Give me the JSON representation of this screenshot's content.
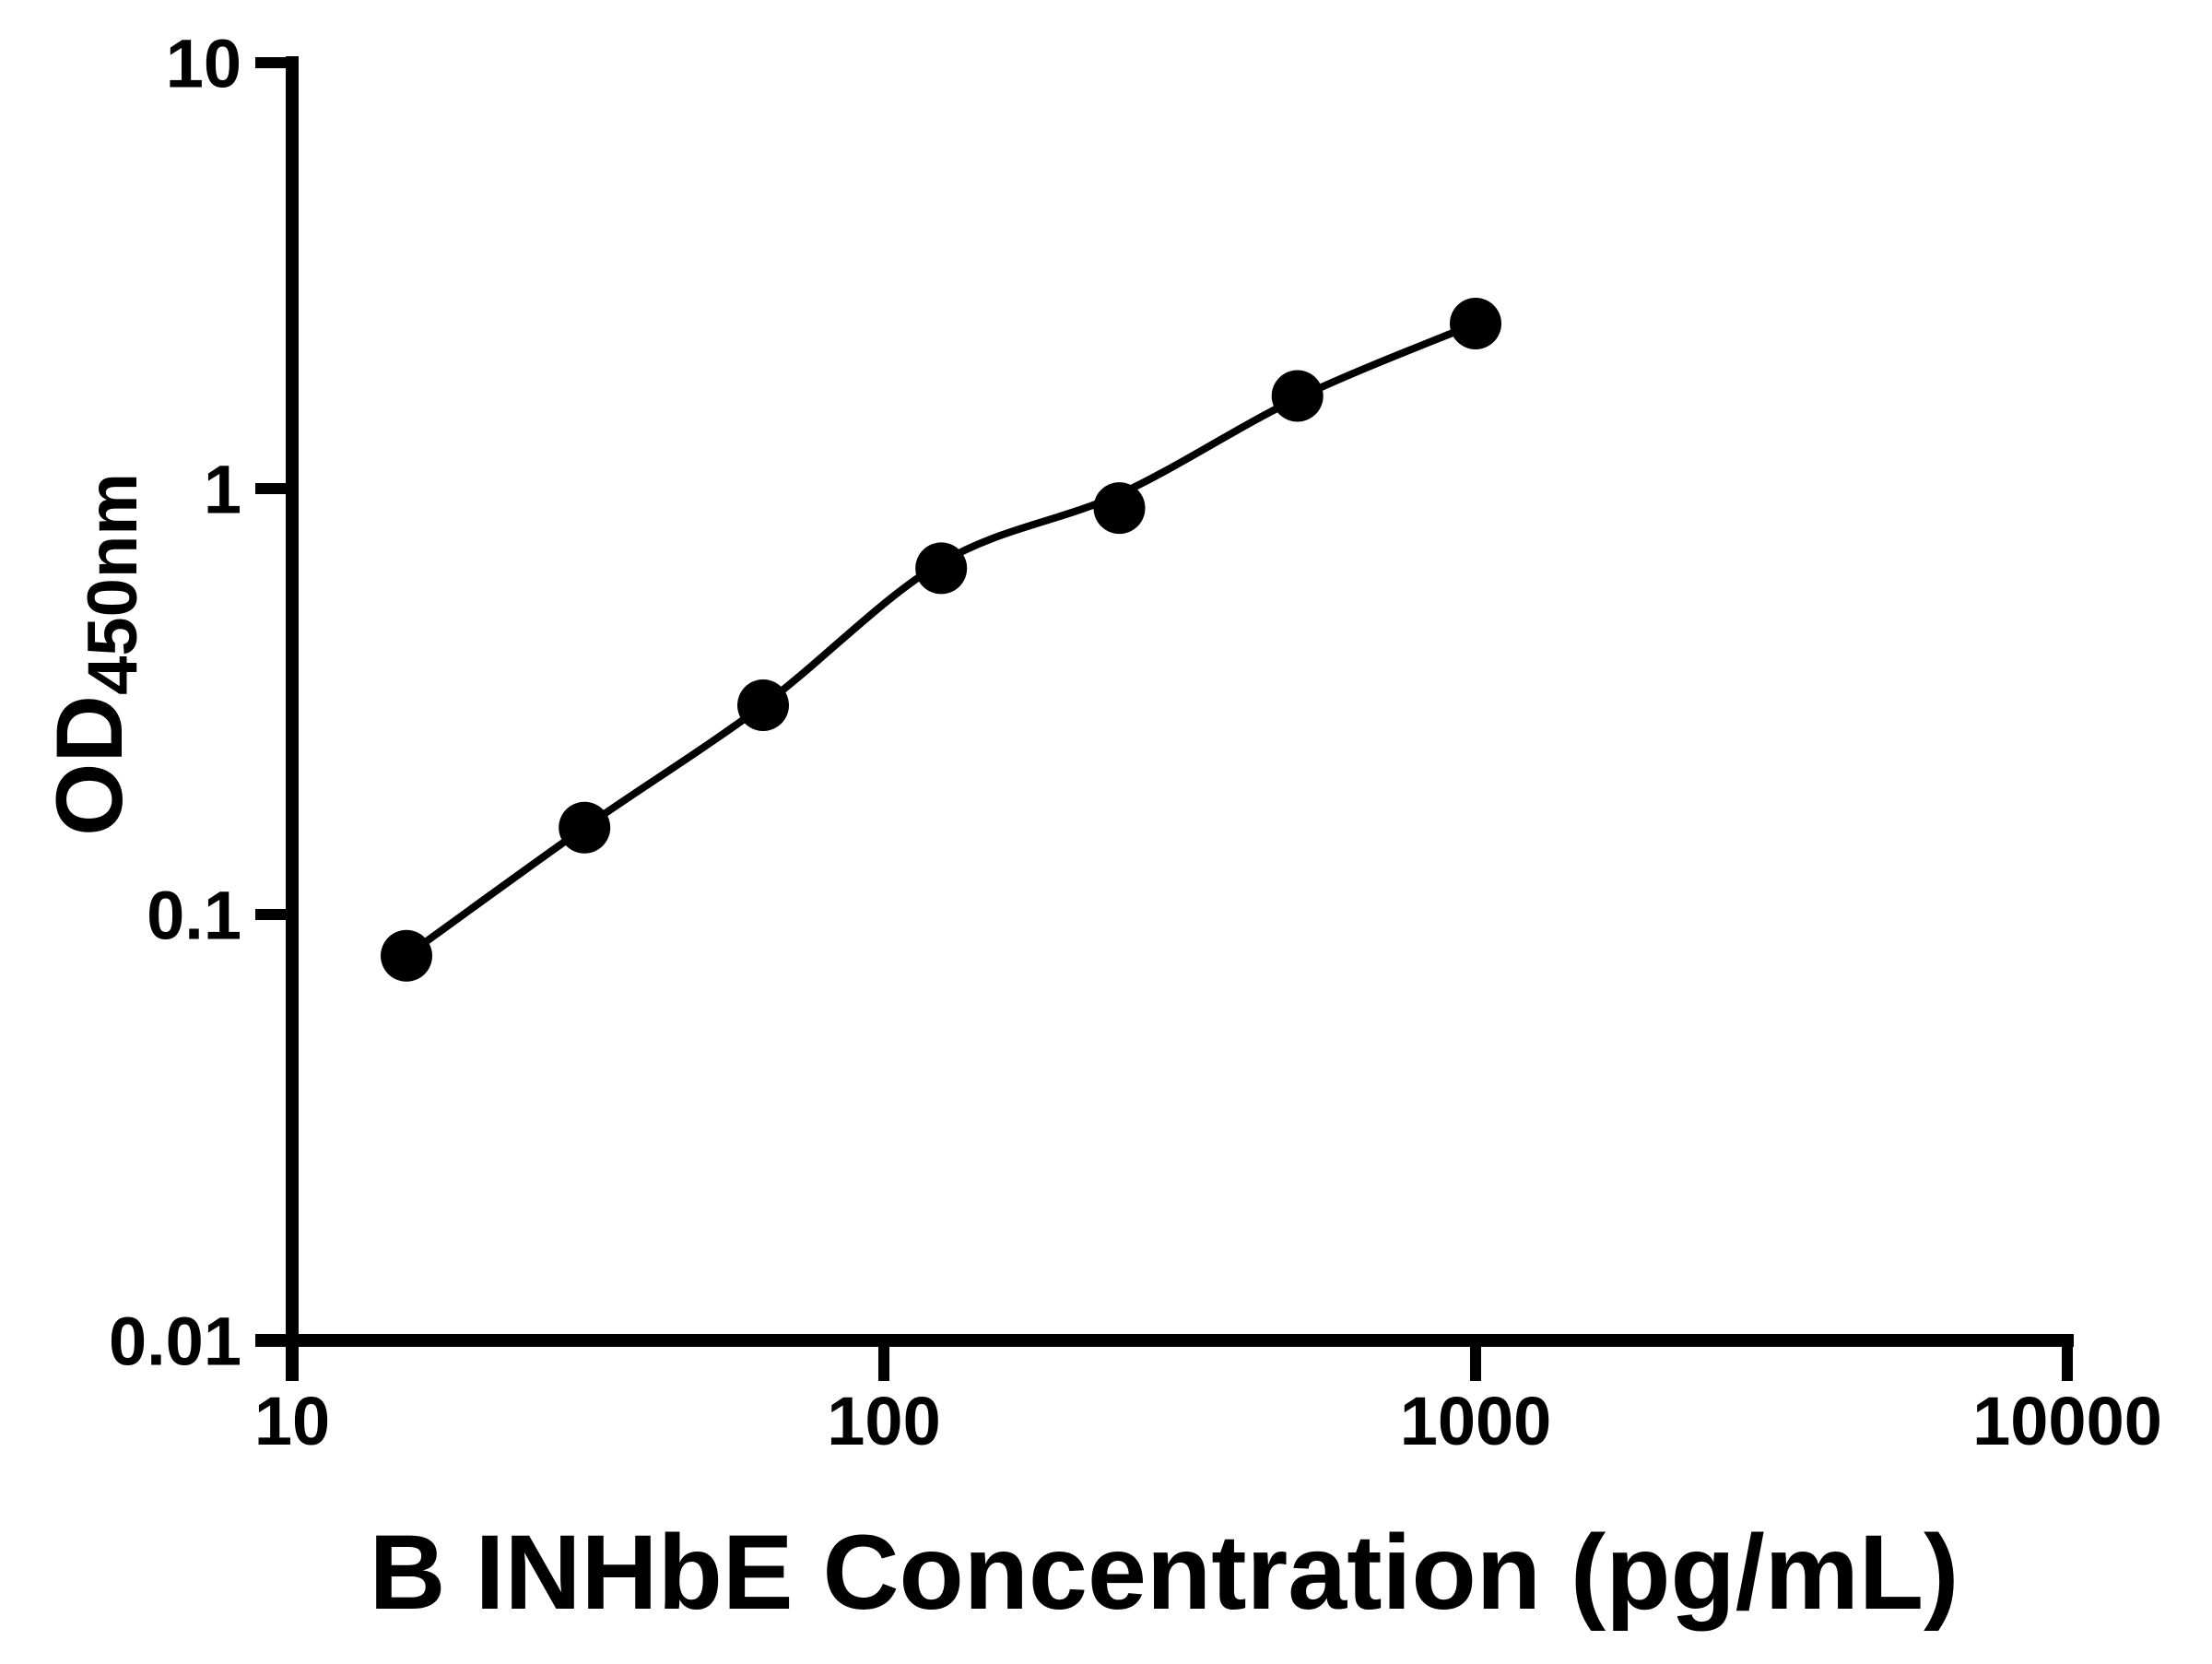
{
  "figure": {
    "background_color": "#ffffff",
    "foreground_color": "#000000"
  },
  "chart_data": {
    "type": "scatter",
    "title": "",
    "xlabel": "B INHbE Concentration (pg/mL)",
    "ylabel": "OD",
    "ylabel_subscript": "450nm",
    "x_scale": "log10",
    "y_scale": "log10",
    "xlim": [
      10,
      10000
    ],
    "ylim": [
      0.01,
      10
    ],
    "x_ticks": [
      10,
      100,
      1000,
      10000
    ],
    "x_tick_labels": [
      "10",
      "100",
      "1000",
      "10000"
    ],
    "y_ticks": [
      10,
      1,
      0.1,
      0.01
    ],
    "y_tick_labels": [
      "10",
      "1",
      "0.1",
      "0.01"
    ],
    "grid": false,
    "legend": null,
    "marker_color": "#000000",
    "line_color": "#000000",
    "series": [
      {
        "name": "standard-points",
        "style": "filled-circle-marker",
        "x": [
          15.6,
          31.2,
          62.5,
          125,
          250,
          500,
          1000
        ],
        "y": [
          0.08,
          0.16,
          0.31,
          0.65,
          0.9,
          1.65,
          2.44
        ]
      },
      {
        "name": "fitted-curve",
        "style": "solid-line",
        "x": [
          15.6,
          31.2,
          62.5,
          125,
          250,
          500,
          1000
        ],
        "y": [
          0.08,
          0.16,
          0.31,
          0.67,
          0.97,
          1.63,
          2.44
        ]
      }
    ]
  }
}
